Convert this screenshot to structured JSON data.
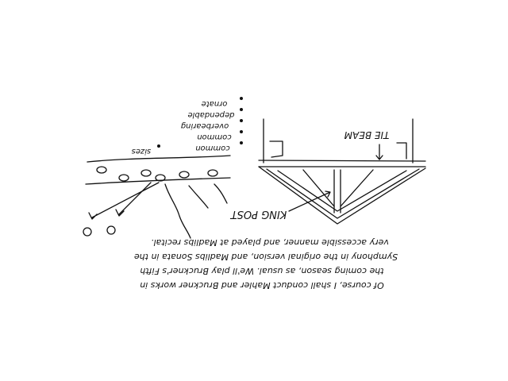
{
  "sketch": {
    "labels": {
      "tie_beam": "TIE BEAM",
      "king_post": "KING POST"
    },
    "legend_items": [
      "ornate",
      "dependable",
      "overbearing",
      "common",
      "common",
      "sizes"
    ],
    "paragraph_lines": [
      "very accessible manner, and played at Madlibs recital.",
      "Symphony in the original version, and Madlibs Sonata in the",
      "the coming season, as usual. We'll play Bruckner's Fifth",
      "Of course, I shall conduct Mahler and Bruckner works in"
    ]
  },
  "colors": {
    "ink": "#111111",
    "background": "#ffffff"
  }
}
